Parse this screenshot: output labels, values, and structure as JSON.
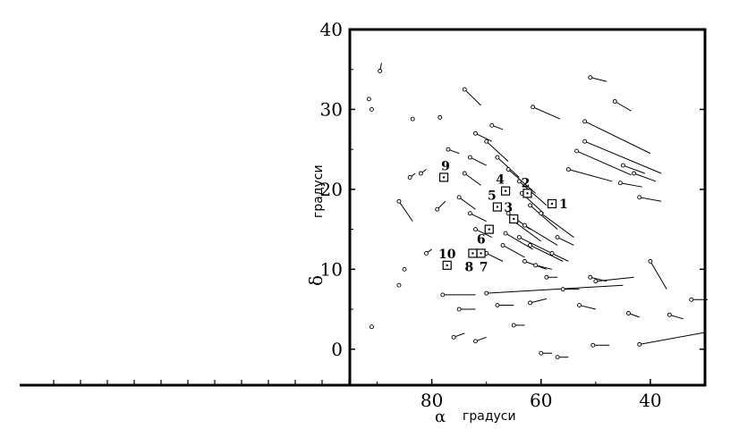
{
  "chart_data": {
    "type": "scatter",
    "title": "",
    "xlabel_symbol": "α",
    "xlabel_unit": "градуси",
    "ylabel_symbol": "δ",
    "ylabel_unit": "градуси",
    "xlim": [
      95,
      30
    ],
    "ylim": [
      -4.5,
      40
    ],
    "x_ticks": [
      80,
      60,
      40
    ],
    "y_ticks": [
      0,
      10,
      20,
      30,
      40
    ],
    "grid": false,
    "motion_vector_note": "each point has a proper-motion line segment",
    "points": [
      {
        "x": 89.5,
        "y": 34.8,
        "dx": -0.3,
        "dy": 1.0
      },
      {
        "x": 91.5,
        "y": 31.3,
        "dx": 0.0,
        "dy": 0.0
      },
      {
        "x": 91.0,
        "y": 30.0,
        "dx": 0.0,
        "dy": 0.0
      },
      {
        "x": 86.0,
        "y": 18.5,
        "dx": -2.5,
        "dy": -2.5
      },
      {
        "x": 83.5,
        "y": 28.8,
        "dx": 0.0,
        "dy": 0.0
      },
      {
        "x": 74.0,
        "y": 32.5,
        "dx": -3.0,
        "dy": -2.0
      },
      {
        "x": 78.5,
        "y": 29.0,
        "dx": 0.0,
        "dy": 0.0
      },
      {
        "x": 61.5,
        "y": 30.3,
        "dx": -5.0,
        "dy": -1.5
      },
      {
        "x": 51.0,
        "y": 34.0,
        "dx": -3.0,
        "dy": -0.5
      },
      {
        "x": 46.5,
        "y": 31.0,
        "dx": -3.0,
        "dy": -1.2
      },
      {
        "x": 52.0,
        "y": 28.5,
        "dx": -12.0,
        "dy": -4.0
      },
      {
        "x": 52.0,
        "y": 26.0,
        "dx": -14.0,
        "dy": -4.0
      },
      {
        "x": 53.5,
        "y": 24.8,
        "dx": -10.0,
        "dy": -3.0
      },
      {
        "x": 55.0,
        "y": 22.5,
        "dx": -8.0,
        "dy": -1.5
      },
      {
        "x": 45.0,
        "y": 23.0,
        "dx": -4.0,
        "dy": -1.0
      },
      {
        "x": 43.0,
        "y": 22.0,
        "dx": -4.0,
        "dy": -1.0
      },
      {
        "x": 45.5,
        "y": 20.8,
        "dx": -4.0,
        "dy": -0.5
      },
      {
        "x": 42.0,
        "y": 19.0,
        "dx": -4.0,
        "dy": -0.5
      },
      {
        "x": 40.0,
        "y": 11.0,
        "dx": -3.0,
        "dy": -3.5
      },
      {
        "x": 51.0,
        "y": 9.0,
        "dx": -3.0,
        "dy": -0.5
      },
      {
        "x": 50.0,
        "y": 8.5,
        "dx": -7.0,
        "dy": 0.5
      },
      {
        "x": 53.0,
        "y": 5.5,
        "dx": -3.0,
        "dy": -0.5
      },
      {
        "x": 44.0,
        "y": 4.5,
        "dx": -2.0,
        "dy": -0.5
      },
      {
        "x": 36.5,
        "y": 4.3,
        "dx": -2.5,
        "dy": -0.5
      },
      {
        "x": 32.5,
        "y": 6.2,
        "dx": -3.0,
        "dy": 0.0
      },
      {
        "x": 42.0,
        "y": 0.6,
        "dx": -12.0,
        "dy": 1.5
      },
      {
        "x": 50.5,
        "y": 0.5,
        "dx": -3.0,
        "dy": 0.0
      },
      {
        "x": 57.0,
        "y": -1.0,
        "dx": -2.0,
        "dy": 0.0
      },
      {
        "x": 60.0,
        "y": -0.5,
        "dx": -2.0,
        "dy": 0.0
      },
      {
        "x": 72.0,
        "y": 1.0,
        "dx": -2.0,
        "dy": 0.5
      },
      {
        "x": 76.0,
        "y": 1.5,
        "dx": -2.0,
        "dy": 0.5
      },
      {
        "x": 91.0,
        "y": 2.8,
        "dx": 0.0,
        "dy": 0.0
      },
      {
        "x": 86.0,
        "y": 8.0,
        "dx": 0.0,
        "dy": 0.0
      },
      {
        "x": 85.0,
        "y": 10.0,
        "dx": 0.0,
        "dy": 0.0
      },
      {
        "x": 81.0,
        "y": 12.0,
        "dx": -1.0,
        "dy": 0.5
      },
      {
        "x": 79.0,
        "y": 17.5,
        "dx": -1.5,
        "dy": 1.0
      },
      {
        "x": 84.0,
        "y": 21.5,
        "dx": -1.0,
        "dy": 0.5
      },
      {
        "x": 82.0,
        "y": 22.0,
        "dx": -1.0,
        "dy": 0.5
      },
      {
        "x": 70.0,
        "y": 26.0,
        "dx": -4.0,
        "dy": -2.5
      },
      {
        "x": 68.0,
        "y": 24.0,
        "dx": -4.0,
        "dy": -2.5
      },
      {
        "x": 66.0,
        "y": 22.5,
        "dx": -5.0,
        "dy": -3.0
      },
      {
        "x": 64.0,
        "y": 21.0,
        "dx": -5.0,
        "dy": -3.0
      },
      {
        "x": 63.5,
        "y": 19.5,
        "dx": -4.0,
        "dy": -2.5
      },
      {
        "x": 62.0,
        "y": 18.0,
        "dx": -5.0,
        "dy": -3.0
      },
      {
        "x": 60.0,
        "y": 17.0,
        "dx": -6.0,
        "dy": -3.0
      },
      {
        "x": 66.0,
        "y": 17.0,
        "dx": -4.0,
        "dy": -2.0
      },
      {
        "x": 65.0,
        "y": 16.0,
        "dx": -5.0,
        "dy": -2.5
      },
      {
        "x": 63.0,
        "y": 15.5,
        "dx": -6.0,
        "dy": -2.5
      },
      {
        "x": 66.5,
        "y": 14.5,
        "dx": -5.0,
        "dy": -2.0
      },
      {
        "x": 64.0,
        "y": 14.0,
        "dx": -6.0,
        "dy": -2.0
      },
      {
        "x": 62.0,
        "y": 13.0,
        "dx": -6.0,
        "dy": -2.0
      },
      {
        "x": 67.0,
        "y": 13.0,
        "dx": -4.0,
        "dy": -1.5
      },
      {
        "x": 70.0,
        "y": 12.0,
        "dx": -3.0,
        "dy": -1.0
      },
      {
        "x": 63.0,
        "y": 11.0,
        "dx": -4.0,
        "dy": -1.0
      },
      {
        "x": 61.0,
        "y": 10.5,
        "dx": -3.0,
        "dy": -0.5
      },
      {
        "x": 58.0,
        "y": 12.0,
        "dx": -3.0,
        "dy": -1.0
      },
      {
        "x": 57.0,
        "y": 14.0,
        "dx": -3.0,
        "dy": -1.0
      },
      {
        "x": 72.0,
        "y": 15.0,
        "dx": -3.0,
        "dy": -1.0
      },
      {
        "x": 73.0,
        "y": 17.0,
        "dx": -3.0,
        "dy": -1.0
      },
      {
        "x": 75.0,
        "y": 19.0,
        "dx": -3.0,
        "dy": -1.5
      },
      {
        "x": 74.0,
        "y": 22.0,
        "dx": -3.0,
        "dy": -1.5
      },
      {
        "x": 73.0,
        "y": 24.0,
        "dx": -3.0,
        "dy": -1.0
      },
      {
        "x": 72.0,
        "y": 27.0,
        "dx": -3.0,
        "dy": -1.0
      },
      {
        "x": 69.0,
        "y": 28.0,
        "dx": -2.0,
        "dy": -0.5
      },
      {
        "x": 77.0,
        "y": 25.0,
        "dx": -2.0,
        "dy": -0.5
      },
      {
        "x": 70.0,
        "y": 7.0,
        "dx": -25.0,
        "dy": 1.0
      },
      {
        "x": 78.0,
        "y": 6.8,
        "dx": -6.0,
        "dy": 0.0
      },
      {
        "x": 75.0,
        "y": 5.0,
        "dx": -3.0,
        "dy": 0.0
      },
      {
        "x": 68.0,
        "y": 5.5,
        "dx": -3.0,
        "dy": 0.0
      },
      {
        "x": 65.0,
        "y": 3.0,
        "dx": -2.0,
        "dy": 0.0
      },
      {
        "x": 62.0,
        "y": 5.8,
        "dx": -3.0,
        "dy": 0.5
      },
      {
        "x": 56.0,
        "y": 7.5,
        "dx": -3.0,
        "dy": 0.0
      },
      {
        "x": 59.0,
        "y": 9.0,
        "dx": -2.0,
        "dy": 0.0
      }
    ],
    "marked_points": [
      {
        "label": "1",
        "x": 58.0,
        "y": 18.2
      },
      {
        "label": "2",
        "x": 62.5,
        "y": 19.5
      },
      {
        "label": "3",
        "x": 65.0,
        "y": 16.3
      },
      {
        "label": "4",
        "x": 66.5,
        "y": 19.8
      },
      {
        "label": "5",
        "x": 68.0,
        "y": 17.8
      },
      {
        "label": "6",
        "x": 69.5,
        "y": 15.0
      },
      {
        "label": "7",
        "x": 71.0,
        "y": 12.0
      },
      {
        "label": "8",
        "x": 72.5,
        "y": 12.0
      },
      {
        "label": "9",
        "x": 77.8,
        "y": 21.5
      },
      {
        "label": "10",
        "x": 77.2,
        "y": 10.5
      }
    ]
  }
}
